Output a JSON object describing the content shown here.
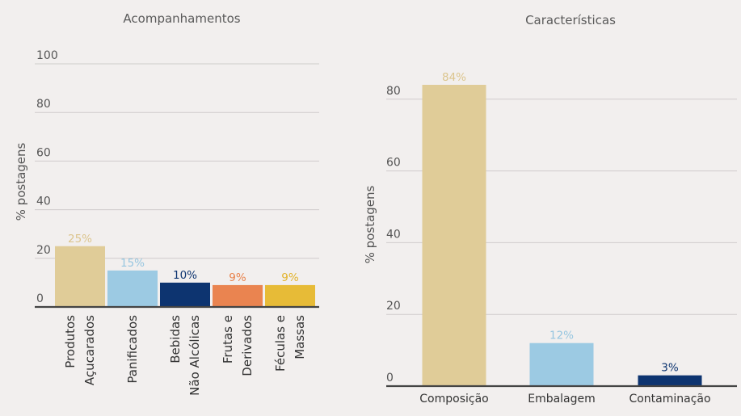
{
  "chart_data": [
    {
      "type": "bar",
      "title": "Acompanhamentos",
      "ylabel": "% postagens",
      "xlabel": "",
      "ylim": [
        0,
        100
      ],
      "yticks": [
        "0",
        "20",
        "40",
        "60",
        "80",
        "100"
      ],
      "grid": true,
      "categories": [
        [
          "Produtos",
          "Açucarados"
        ],
        [
          "Panificados"
        ],
        [
          "Bebidas",
          "Não Alcólicas"
        ],
        [
          "Frutas e",
          "Derivados"
        ],
        [
          "Féculas e",
          "Massas"
        ]
      ],
      "values": [
        25,
        15,
        10,
        9,
        9
      ],
      "labels": [
        "25%",
        "15%",
        "10%",
        "9%",
        "9%"
      ],
      "colors": [
        "#e0cc98",
        "#9ccae3",
        "#0d3470",
        "#ea8450",
        "#e7bb37"
      ],
      "label_colors": [
        "#dcc58e",
        "#97c6e0",
        "#0d3470",
        "#e8824c",
        "#e2b32c"
      ]
    },
    {
      "type": "bar",
      "title": "Características",
      "ylabel": "% postagens",
      "xlabel": "",
      "ylim": [
        0,
        84
      ],
      "yticks": [
        "0",
        "20",
        "40",
        "60",
        "80"
      ],
      "grid": true,
      "categories": [
        "Composição",
        "Embalagem",
        "Contaminação"
      ],
      "values": [
        84,
        12,
        3
      ],
      "labels": [
        "84%",
        "12%",
        "3%"
      ],
      "colors": [
        "#e0cc98",
        "#9ccae3",
        "#0d3470"
      ],
      "label_colors": [
        "#dcc58e",
        "#97c6e0",
        "#0d3470"
      ]
    }
  ]
}
